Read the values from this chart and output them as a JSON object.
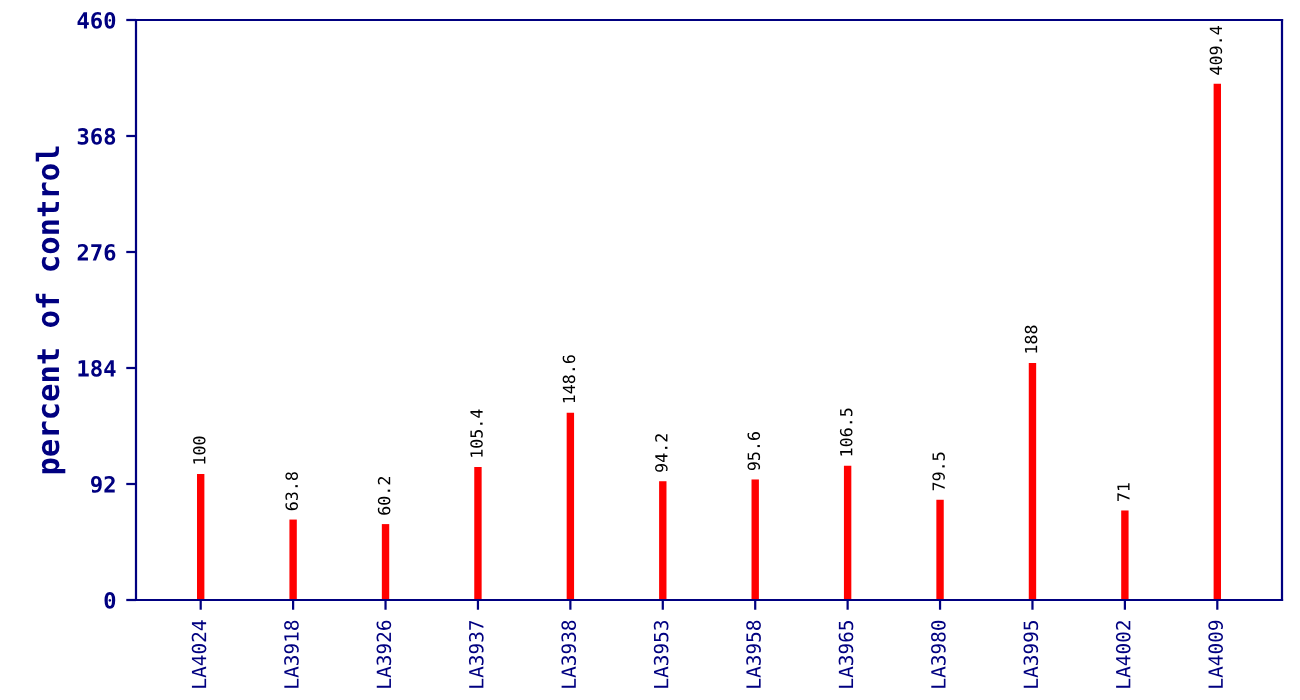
{
  "chart_data": {
    "type": "bar",
    "ylabel": "percent of control",
    "categories": [
      "LA4024",
      "LA3918",
      "LA3926",
      "LA3937",
      "LA3938",
      "LA3953",
      "LA3958",
      "LA3965",
      "LA3980",
      "LA3995",
      "LA4002",
      "LA4009"
    ],
    "values": [
      100,
      63.8,
      60.2,
      105.4,
      148.6,
      94.2,
      95.6,
      106.5,
      79.5,
      188,
      71,
      409.4
    ],
    "color": "#ff0000",
    "ylim": [
      0,
      460
    ],
    "yticks": [
      0,
      92,
      184,
      276,
      368,
      460
    ],
    "data_labels": true,
    "grid": false,
    "legend": false
  }
}
